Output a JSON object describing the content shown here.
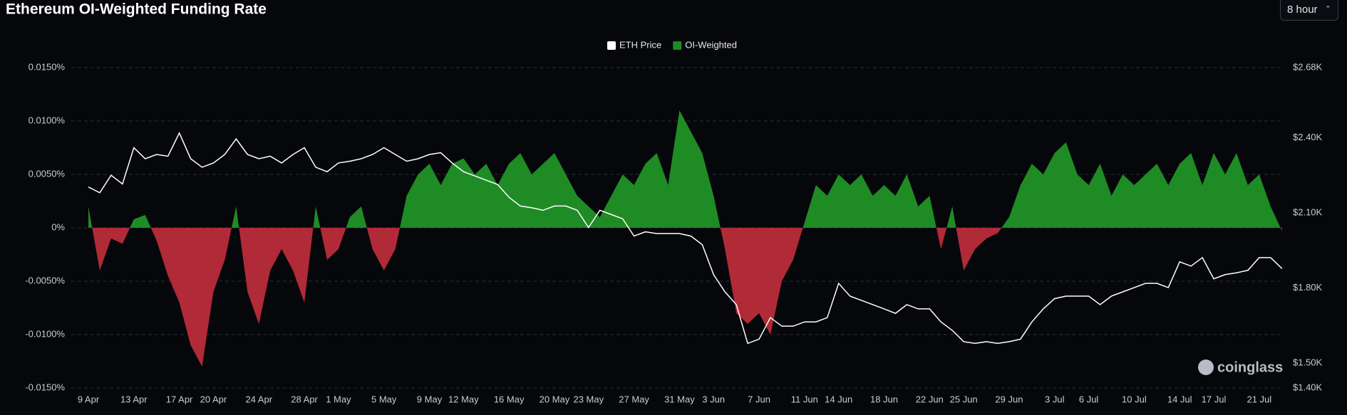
{
  "controls": {
    "interval": "8 hour"
  },
  "watermark": "coinglass",
  "chart_data": {
    "type": "area",
    "title": "Ethereum OI-Weighted Funding Rate",
    "x": [
      "9 Apr",
      "10 Apr",
      "11 Apr",
      "12 Apr",
      "13 Apr",
      "14 Apr",
      "15 Apr",
      "16 Apr",
      "17 Apr",
      "18 Apr",
      "19 Apr",
      "20 Apr",
      "21 Apr",
      "22 Apr",
      "23 Apr",
      "24 Apr",
      "25 Apr",
      "26 Apr",
      "27 Apr",
      "28 Apr",
      "29 Apr",
      "30 Apr",
      "1 May",
      "2 May",
      "3 May",
      "4 May",
      "5 May",
      "6 May",
      "7 May",
      "8 May",
      "9 May",
      "10 May",
      "11 May",
      "12 May",
      "13 May",
      "14 May",
      "15 May",
      "16 May",
      "17 May",
      "18 May",
      "19 May",
      "20 May",
      "21 May",
      "22 May",
      "23 May",
      "24 May",
      "25 May",
      "26 May",
      "27 May",
      "28 May",
      "29 May",
      "30 May",
      "31 May",
      "1 Jun",
      "2 Jun",
      "3 Jun",
      "4 Jun",
      "5 Jun",
      "6 Jun",
      "7 Jun",
      "8 Jun",
      "9 Jun",
      "10 Jun",
      "11 Jun",
      "12 Jun",
      "13 Jun",
      "14 Jun",
      "15 Jun",
      "16 Jun",
      "17 Jun",
      "18 Jun",
      "19 Jun",
      "20 Jun",
      "21 Jun",
      "22 Jun",
      "23 Jun",
      "24 Jun",
      "25 Jun",
      "26 Jun",
      "27 Jun",
      "28 Jun",
      "29 Jun",
      "30 Jun",
      "1 Jul",
      "2 Jul",
      "3 Jul",
      "4 Jul",
      "5 Jul",
      "6 Jul",
      "7 Jul",
      "8 Jul",
      "9 Jul",
      "10 Jul",
      "11 Jul",
      "12 Jul",
      "13 Jul",
      "14 Jul",
      "15 Jul",
      "16 Jul",
      "17 Jul",
      "18 Jul",
      "19 Jul",
      "20 Jul",
      "21 Jul",
      "22 Jul",
      "23 Jul"
    ],
    "xticks": [
      "9 Apr",
      "13 Apr",
      "17 Apr",
      "20 Apr",
      "24 Apr",
      "28 Apr",
      "1 May",
      "5 May",
      "9 May",
      "12 May",
      "16 May",
      "20 May",
      "23 May",
      "27 May",
      "31 May",
      "3 Jun",
      "7 Jun",
      "11 Jun",
      "14 Jun",
      "18 Jun",
      "22 Jun",
      "25 Jun",
      "29 Jun",
      "3 Jul",
      "6 Jul",
      "10 Jul",
      "14 Jul",
      "17 Jul",
      "21 Jul"
    ],
    "ylim": [
      -0.015,
      0.015
    ],
    "yticks": [
      {
        "value": 0.015,
        "label": "0.0150%"
      },
      {
        "value": 0.01,
        "label": "0.0100%"
      },
      {
        "value": 0.005,
        "label": "0.0050%"
      },
      {
        "value": 0,
        "label": "0%"
      },
      {
        "value": -0.005,
        "label": "-0.0050%"
      },
      {
        "value": -0.01,
        "label": "-0.0100%"
      },
      {
        "value": -0.015,
        "label": "-0.0150%"
      }
    ],
    "y2lim": [
      1400,
      2680
    ],
    "y2ticks": [
      {
        "value": 2680,
        "label": "$2.68K"
      },
      {
        "value": 2400,
        "label": "$2.40K"
      },
      {
        "value": 2100,
        "label": "$2.10K"
      },
      {
        "value": 1800,
        "label": "$1.80K"
      },
      {
        "value": 1500,
        "label": "$1.50K"
      },
      {
        "value": 1400,
        "label": "$1.40K"
      }
    ],
    "grid": true,
    "legend": "top",
    "series": [
      {
        "name": "ETH Price",
        "color": "#ffffff",
        "type": "line",
        "axis": "y2",
        "values": [
          2203,
          2180,
          2250,
          2215,
          2360,
          2316,
          2333,
          2326,
          2419,
          2316,
          2282,
          2299,
          2333,
          2395,
          2333,
          2316,
          2326,
          2299,
          2333,
          2360,
          2282,
          2264,
          2299,
          2306,
          2316,
          2333,
          2360,
          2333,
          2306,
          2316,
          2333,
          2340,
          2299,
          2264,
          2247,
          2230,
          2213,
          2162,
          2127,
          2120,
          2110,
          2127,
          2127,
          2110,
          2041,
          2110,
          2093,
          2076,
          2007,
          2024,
          2017,
          2017,
          2017,
          2007,
          1973,
          1853,
          1784,
          1733,
          1578,
          1595,
          1681,
          1647,
          1647,
          1664,
          1664,
          1681,
          1818,
          1767,
          1750,
          1733,
          1716,
          1698,
          1733,
          1716,
          1716,
          1664,
          1630,
          1585,
          1578,
          1585,
          1578,
          1585,
          1595,
          1664,
          1716,
          1757,
          1767,
          1767,
          1767,
          1733,
          1767,
          1784,
          1801,
          1818,
          1818,
          1801,
          1904,
          1887,
          1921,
          1836,
          1853,
          1860,
          1870,
          1921,
          1921,
          1877
        ]
      },
      {
        "name": "OI-Weighted",
        "color": "#1f8b24",
        "negative_color": "#b02a37",
        "type": "area",
        "values": [
          0.002,
          -0.004,
          -0.001,
          -0.0015,
          0.0008,
          0.0012,
          -0.0012,
          -0.0045,
          -0.007,
          -0.011,
          -0.013,
          -0.006,
          -0.003,
          0.002,
          -0.006,
          -0.009,
          -0.004,
          -0.002,
          -0.004,
          -0.007,
          0.002,
          -0.003,
          -0.002,
          0.001,
          0.002,
          -0.002,
          -0.004,
          -0.002,
          0.003,
          0.005,
          0.006,
          0.004,
          0.006,
          0.0065,
          0.005,
          0.006,
          0.004,
          0.006,
          0.007,
          0.005,
          0.006,
          0.007,
          0.005,
          0.003,
          0.002,
          0.001,
          0.003,
          0.005,
          0.004,
          0.006,
          0.007,
          0.004,
          0.011,
          0.009,
          0.007,
          0.003,
          -0.002,
          -0.008,
          -0.009,
          -0.008,
          -0.01,
          -0.005,
          -0.003,
          0.0005,
          0.004,
          0.003,
          0.005,
          0.004,
          0.005,
          0.003,
          0.004,
          0.003,
          0.005,
          0.002,
          0.003,
          -0.002,
          0.002,
          -0.004,
          -0.002,
          -0.001,
          -0.0005,
          0.001,
          0.004,
          0.006,
          0.005,
          0.007,
          0.008,
          0.005,
          0.004,
          0.006,
          0.003,
          0.005,
          0.004,
          0.005,
          0.006,
          0.004,
          0.006,
          0.007,
          0.004,
          0.007,
          0.005,
          0.007,
          0.004,
          0.005,
          0.002,
          -0.0003
        ]
      }
    ]
  }
}
